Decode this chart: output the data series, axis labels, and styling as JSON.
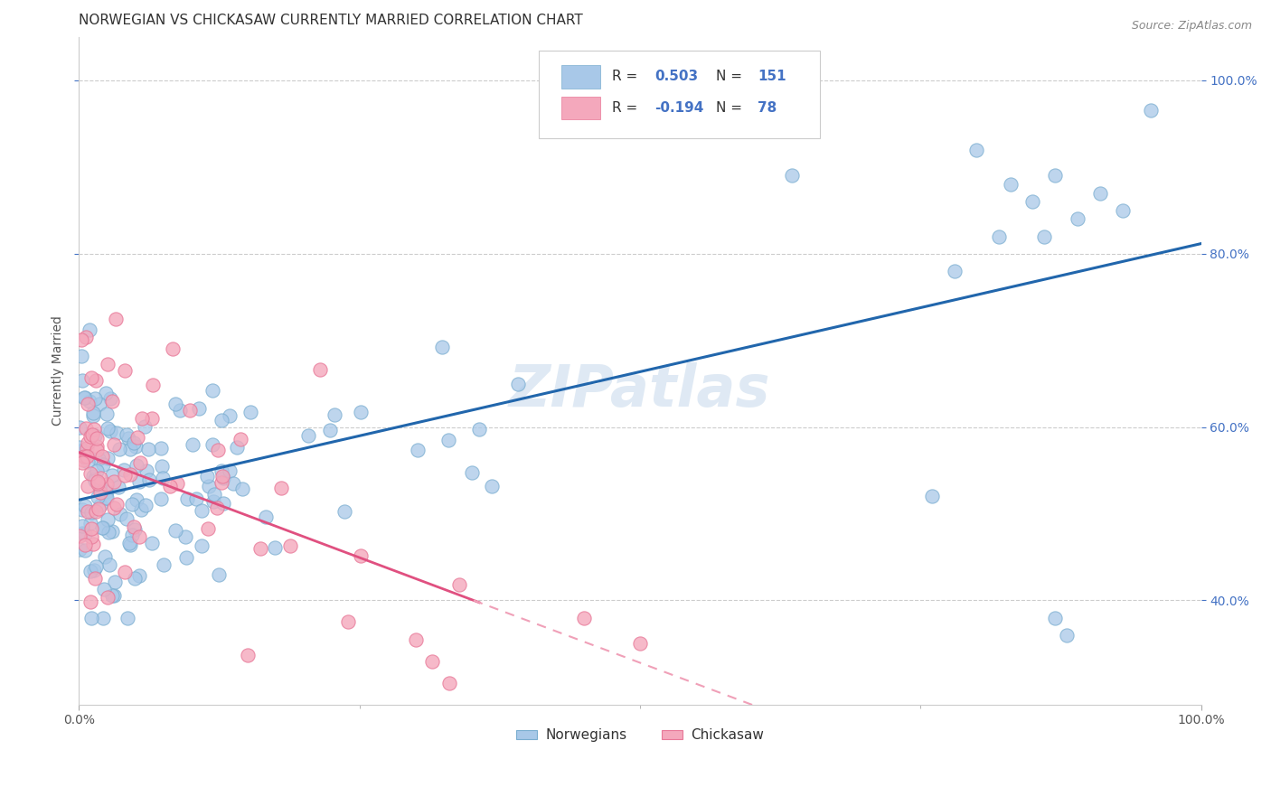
{
  "title": "NORWEGIAN VS CHICKASAW CURRENTLY MARRIED CORRELATION CHART",
  "source": "Source: ZipAtlas.com",
  "ylabel": "Currently Married",
  "norwegian_color": "#a8c8e8",
  "norwegian_edge_color": "#7aaed0",
  "chickasaw_color": "#f4a8bc",
  "chickasaw_edge_color": "#e87898",
  "norwegian_line_color": "#2166ac",
  "chickasaw_line_solid_color": "#e05080",
  "chickasaw_line_dash_color": "#f0a0b8",
  "legend_label_norwegian": "Norwegians",
  "legend_label_chickasaw": "Chickasaw",
  "R_norwegian": "0.503",
  "N_norwegian": "151",
  "R_chickasaw": "-0.194",
  "N_chickasaw": "78",
  "watermark": "ZIPatlas",
  "background_color": "#ffffff",
  "grid_color": "#cccccc",
  "xlim": [
    0.0,
    1.0
  ],
  "ylim": [
    0.28,
    1.05
  ],
  "y_ticks": [
    0.4,
    0.6,
    0.8,
    1.0
  ],
  "y_tick_labels": [
    "40.0%",
    "60.0%",
    "80.0%",
    "100.0%"
  ],
  "x_ticks": [
    0.0,
    1.0
  ],
  "x_tick_labels": [
    "0.0%",
    "100.0%"
  ],
  "tick_color": "#4472c4",
  "title_fontsize": 11,
  "source_fontsize": 9,
  "axis_label_fontsize": 10,
  "tick_fontsize": 10,
  "legend_fontsize": 11
}
